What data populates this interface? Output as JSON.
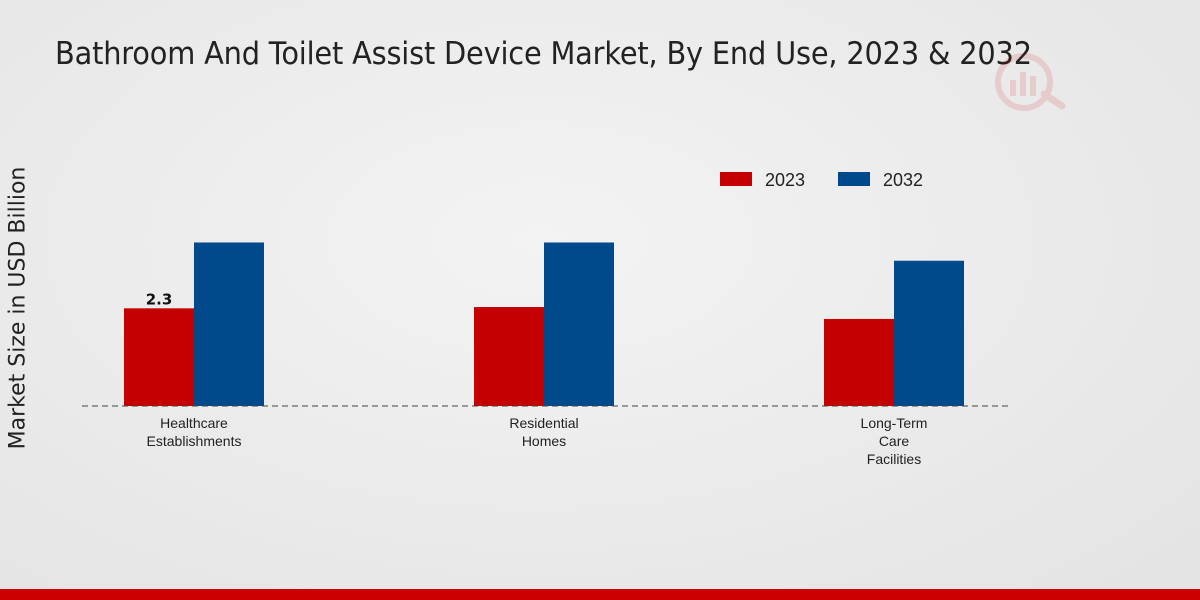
{
  "chart_data": {
    "type": "bar",
    "title": "Bathroom And Toilet Assist Device Market, By End Use, 2023 & 2032",
    "xlabel": "",
    "ylabel": "Market Size in USD Billion",
    "categories": [
      [
        "Healthcare",
        "Establishments"
      ],
      [
        "Residential",
        "Homes"
      ],
      [
        "Long-Term",
        "Care",
        "Facilities"
      ]
    ],
    "series": [
      {
        "name": "2023",
        "color": "#c40000",
        "values": [
          2.3,
          2.33,
          2.05
        ],
        "data_labels": [
          "2.3",
          null,
          null
        ]
      },
      {
        "name": "2032",
        "color": "#004a8c",
        "values": [
          3.85,
          3.85,
          3.42
        ],
        "data_labels": [
          null,
          null,
          null
        ]
      }
    ],
    "ylim": [
      0,
      8.5
    ],
    "grid": false,
    "legend_position": "top-right"
  }
}
